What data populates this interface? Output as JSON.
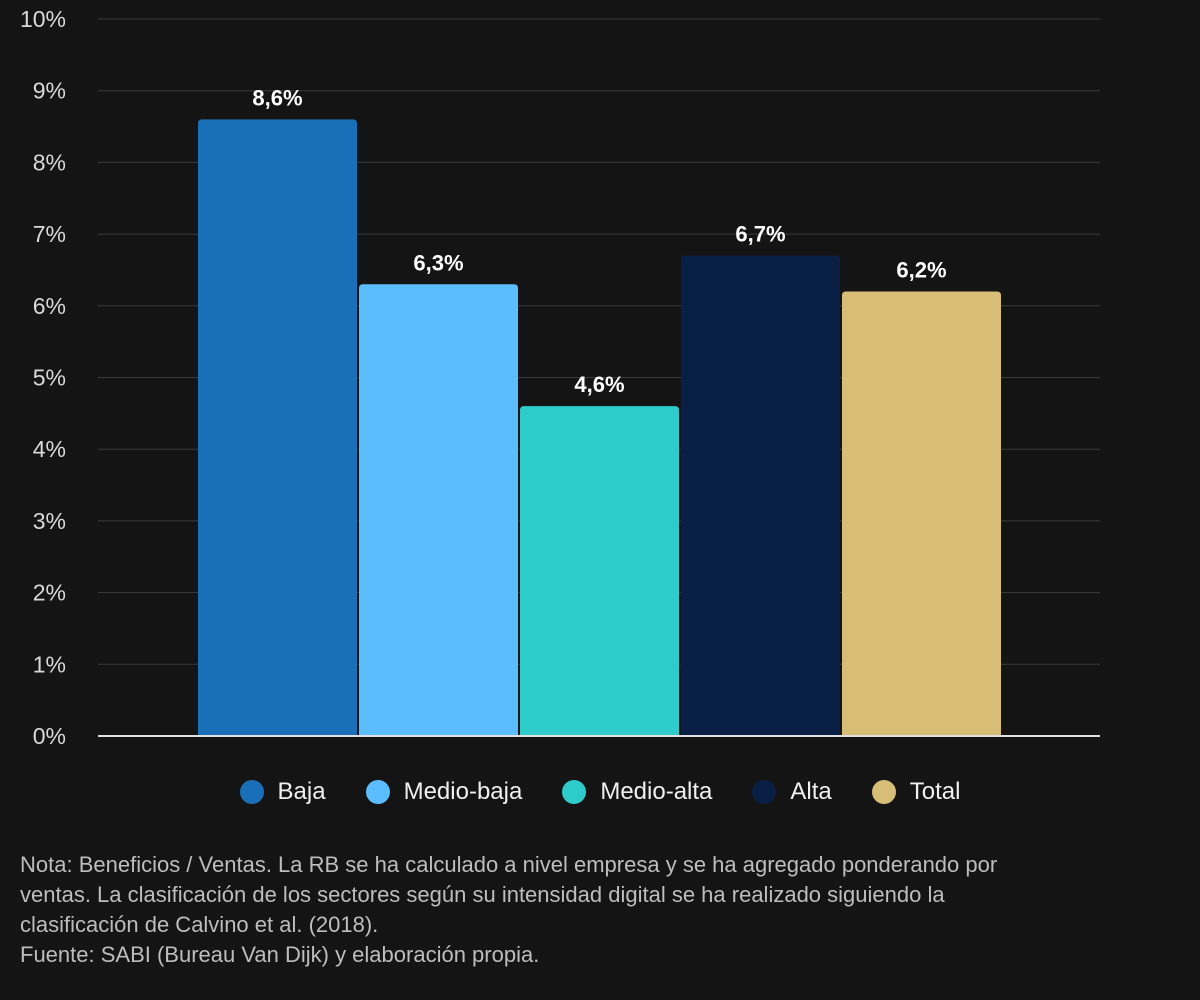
{
  "chart_data": {
    "type": "bar",
    "title": "",
    "xlabel": "",
    "ylabel": "",
    "ylim": [
      0,
      10
    ],
    "yticks": [
      "0%",
      "1%",
      "2%",
      "3%",
      "4%",
      "5%",
      "6%",
      "7%",
      "8%",
      "9%",
      "10%"
    ],
    "grid": true,
    "legend_position": "bottom",
    "categories": [
      "Baja",
      "Medio-baja",
      "Medio-alta",
      "Alta",
      "Total"
    ],
    "values": [
      8.6,
      6.3,
      4.6,
      6.7,
      6.2
    ],
    "data_labels": [
      "8,6%",
      "6,3%",
      "4,6%",
      "6,7%",
      "6,2%"
    ],
    "colors": [
      "#1a70b8",
      "#5bbdfd",
      "#2ecbcb",
      "#0a1f45",
      "#d7bd76"
    ]
  },
  "note": {
    "lines": [
      "Nota: Beneficios / Ventas. La RB se ha calculado a nivel empresa y se ha agregado ponderando por",
      "ventas. La clasificación de los sectores según su intensidad digital se ha realizado siguiendo la",
      "clasificación de Calvino et al. (2018).",
      "Fuente: SABI (Bureau Van Dijk) y elaboración propia."
    ]
  },
  "colors": {
    "background": "#141414",
    "grid": "#3a3a3a",
    "axis": "#e0e0e0"
  }
}
